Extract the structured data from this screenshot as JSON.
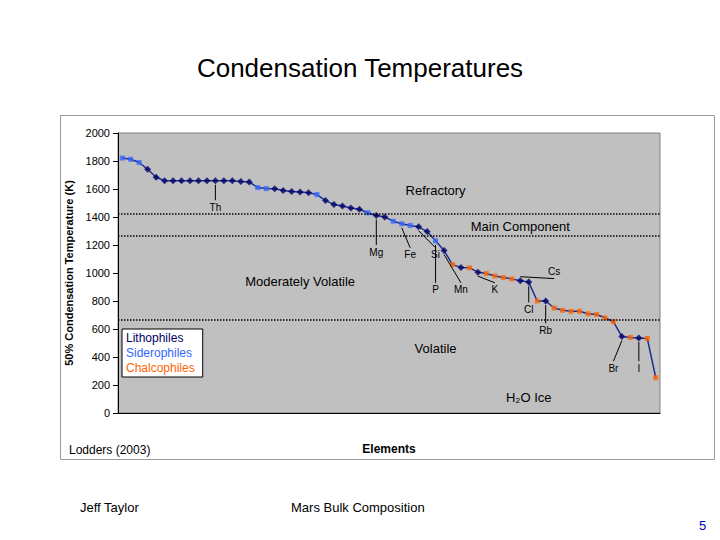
{
  "title": "Condensation Temperatures",
  "footer": {
    "author": "Jeff Taylor",
    "topic": "Mars Bulk Composition",
    "page": 5
  },
  "chart_data": {
    "type": "line",
    "source": "Lodders (2003)",
    "x_label": "Elements",
    "y_label": "50% Condensation Temperature (K)",
    "categories": [
      null,
      null,
      null,
      null,
      null,
      null,
      null,
      null,
      null,
      null,
      null,
      null,
      null,
      null,
      null,
      null,
      null,
      null,
      null,
      null,
      null,
      null,
      null,
      null,
      null,
      null,
      null,
      null,
      null,
      null,
      null,
      null,
      null,
      null,
      null,
      null,
      null,
      null,
      null,
      null,
      null,
      null,
      null,
      null,
      null,
      null,
      null,
      null,
      null,
      null,
      null,
      null,
      null,
      null,
      null,
      null,
      null,
      null,
      null,
      null,
      null,
      null,
      null,
      null
    ],
    "series": [
      {
        "name": "Lithophiles",
        "color": "#000066",
        "marker": "diamond",
        "values": [
          null,
          null,
          null,
          1741,
          1684,
          1659,
          1659,
          1659,
          1659,
          1659,
          1659,
          1659,
          1659,
          1659,
          1653,
          1650,
          null,
          null,
          1602,
          1590,
          1582,
          1578,
          1573,
          null,
          1517,
          1490,
          1478,
          1464,
          1455,
          null,
          1410,
          1400,
          null,
          null,
          null,
          1330,
          1296,
          null,
          1160,
          null,
          1040,
          null,
          1006,
          null,
          null,
          null,
          null,
          945,
          935,
          null,
          800,
          null,
          null,
          null,
          null,
          null,
          null,
          null,
          null,
          546,
          null,
          536,
          null,
          null
        ]
      },
      {
        "name": "Siderophiles",
        "color": "#3366ff",
        "marker": "square",
        "values": [
          1821,
          1812,
          1789,
          null,
          null,
          null,
          null,
          null,
          null,
          null,
          null,
          null,
          null,
          null,
          null,
          null,
          1610,
          1603,
          null,
          null,
          null,
          null,
          null,
          1560,
          null,
          null,
          null,
          null,
          null,
          1430,
          null,
          null,
          1370,
          1352,
          1340,
          null,
          null,
          1230,
          null,
          null,
          null,
          null,
          null,
          null,
          null,
          null,
          null,
          null,
          null,
          null,
          null,
          null,
          null,
          null,
          null,
          null,
          null,
          null,
          null,
          null,
          null,
          null,
          null,
          null
        ]
      },
      {
        "name": "Chalcophiles",
        "color": "#ff6600",
        "marker": "square",
        "values": [
          null,
          null,
          null,
          null,
          null,
          null,
          null,
          null,
          null,
          null,
          null,
          null,
          null,
          null,
          null,
          null,
          null,
          null,
          null,
          null,
          null,
          null,
          null,
          null,
          null,
          null,
          null,
          null,
          null,
          null,
          null,
          null,
          null,
          null,
          null,
          null,
          null,
          null,
          null,
          1060,
          null,
          1037,
          null,
          996,
          979,
          968,
          958,
          null,
          null,
          800,
          null,
          750,
          734,
          726,
          727,
          709,
          704,
          680,
          652,
          null,
          540,
          null,
          532,
          252
        ]
      }
    ],
    "ylim": [
      0,
      2000
    ],
    "yticks": [
      0,
      200,
      400,
      600,
      800,
      1000,
      1200,
      1400,
      1600,
      1800,
      2000
    ],
    "grid": false,
    "legend": "lower left",
    "tick_labels": "y",
    "reference_lines": [
      1420,
      1265,
      665
    ],
    "annotations": [
      {
        "text": "Th",
        "x": 11,
        "y": 1470,
        "point": 11
      },
      {
        "text": "Mg",
        "x": 30,
        "y": 1150,
        "point": 30
      },
      {
        "text": "Fe",
        "x": 34,
        "y": 1130,
        "point": 33
      },
      {
        "text": "Si",
        "x": 37,
        "y": 1130,
        "point": 35
      },
      {
        "text": "P",
        "x": 37,
        "y": 880,
        "point": 37
      },
      {
        "text": "Mn",
        "x": 40,
        "y": 880,
        "point": 38
      },
      {
        "text": "K",
        "x": 44,
        "y": 880,
        "point": 42
      },
      {
        "text": "Cs",
        "x": 51,
        "y": 1010,
        "point": 47
      },
      {
        "text": "Cl",
        "x": 48,
        "y": 740,
        "point": 48
      },
      {
        "text": "Rb",
        "x": 50,
        "y": 590,
        "point": 50
      },
      {
        "text": "Br",
        "x": 58,
        "y": 320,
        "point": 59
      },
      {
        "text": "I",
        "x": 61,
        "y": 320,
        "point": 61
      }
    ],
    "region_labels": [
      {
        "text": "Refractory",
        "x": 37,
        "y": 1590
      },
      {
        "text": "Main Component",
        "x": 47,
        "y": 1330
      },
      {
        "text": "Moderately Volatile",
        "x": 21,
        "y": 936
      },
      {
        "text": "Volatile",
        "x": 37,
        "y": 464
      },
      {
        "text": "H₂O Ice",
        "x": 48,
        "y": 110
      }
    ]
  }
}
